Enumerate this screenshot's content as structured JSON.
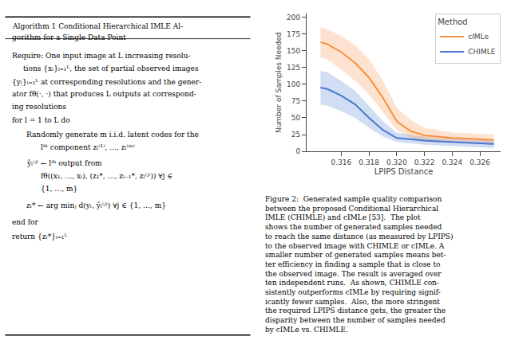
{
  "chart_data": {
    "type": "line",
    "xlabel": "LPIPS Distance",
    "ylabel": "Number of Samples Needed",
    "xlim": [
      0.3135,
      0.3275
    ],
    "ylim": [
      0,
      205
    ],
    "xticks": [
      0.316,
      0.318,
      {
        "value": 0.32,
        "label": "0.320"
      },
      0.322,
      0.324,
      0.326
    ],
    "yticks": [
      0,
      25,
      50,
      75,
      100,
      125,
      150,
      175,
      200
    ],
    "grid": false,
    "legend": "upper right",
    "legend_title": "Method",
    "series": [
      {
        "name": "CHIMLE",
        "color": "#4878cf",
        "x": [
          0.3145,
          0.315,
          0.316,
          0.317,
          0.318,
          0.319,
          0.32,
          0.321,
          0.322,
          0.323,
          0.324,
          0.325,
          0.326,
          0.327
        ],
        "values": [
          95,
          93,
          83,
          70,
          50,
          32,
          20,
          18,
          16,
          15,
          14,
          13,
          12,
          11
        ],
        "lower": [
          70,
          68,
          60,
          50,
          35,
          22,
          14,
          12,
          10,
          9,
          8,
          7,
          6,
          5
        ],
        "upper": [
          120,
          118,
          105,
          90,
          68,
          45,
          28,
          25,
          22,
          20,
          19,
          18,
          17,
          16
        ]
      },
      {
        "name": "cIMLe",
        "color": "#f78f3f",
        "x": [
          0.3145,
          0.315,
          0.316,
          0.317,
          0.318,
          0.319,
          0.32,
          0.321,
          0.322,
          0.323,
          0.324,
          0.325,
          0.326,
          0.327
        ],
        "values": [
          163,
          160,
          148,
          132,
          110,
          80,
          45,
          30,
          24,
          22,
          20,
          19,
          18,
          17
        ],
        "lower": [
          140,
          137,
          122,
          105,
          85,
          58,
          32,
          20,
          15,
          14,
          13,
          12,
          11,
          10
        ],
        "upper": [
          185,
          182,
          172,
          158,
          138,
          105,
          65,
          47,
          35,
          32,
          28,
          27,
          26,
          25
        ]
      }
    ],
    "annotations": [
      "Algorithm 1 Conditional Hierarchical IMLE Al-",
      "gorithm for a Single Data Point",
      "Require: One input image at L increasing resolu-",
      "tions {xₗ}ₗ₌₁ᴸ, the set of partial observed images",
      "{yₗ}ₗ₌₁ᴸ at corresponding resolutions and the gener-",
      "ator fθ(·, ·) that produces L outputs at correspond-",
      "ing resolutions",
      "for l = 1 to L do",
      "Randomly generate m i.i.d. latent codes for the",
      "lᵗʰ component zₗ⁽¹⁾, …, zₗ⁽ᵐ⁾",
      "ỹₗ⁽ʲ⁾ ← lᵗʰ output from",
      "fθ((x₁, …, xₗ), (z₁*, …, zₗ₋₁*, zₗ⁽ʲ⁾)) ∀j ∈",
      "{1, …, m}",
      "zₗ* ← arg minⱼ d(yₗ, ỹₗ⁽ʲ⁾) ∀j ∈ {1, …, m}",
      "end for",
      "return {zₗ*}ₗ₌₁ᴸ"
    ],
    "caption": "Figure 2:  Generated sample quality comparison\nbetween the proposed Conditional Hierarchical\nIMLE (CHIMLE) and cIMLe [53].  The plot\nshows the number of generated samples needed\nto reach the same distance (as measured by LPIPS)\nto the observed image with CHIMLE or cIMLe. A\nsmaller number of generated samples means bet-\nter efficiency in finding a sample that is close to\nthe observed image. The result is averaged over\nten independent runs.  As shown, CHIMLE con-\nsistently outperforms cIMLe by requiring signif-\nicantly fewer samples.  Also, the more stringent\nthe required LPIPS distance gets, the greater the\ndisparity between the number of samples needed\nby cIMLe vs. CHIMLE."
  }
}
